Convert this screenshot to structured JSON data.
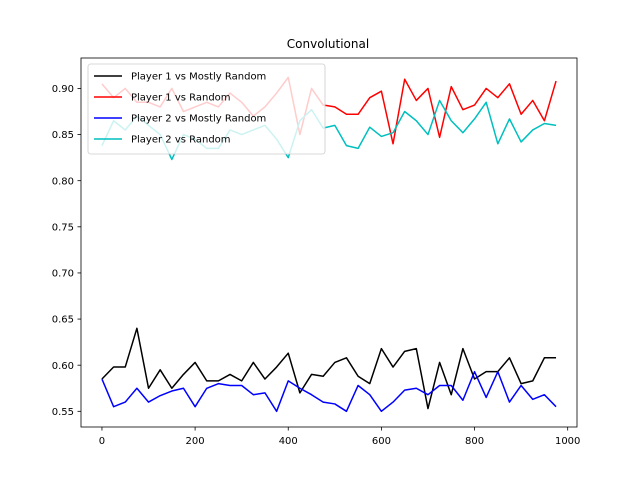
{
  "chart_data": {
    "type": "line",
    "title": "Convolutional",
    "xlabel": "",
    "ylabel": "",
    "xlim": [
      -45,
      1020
    ],
    "ylim": [
      0.533,
      0.933
    ],
    "xticks": [
      0,
      200,
      400,
      600,
      800,
      1000
    ],
    "xtick_labels": [
      "0",
      "200",
      "400",
      "600",
      "800",
      "1000"
    ],
    "yticks": [
      0.55,
      0.6,
      0.65,
      0.7,
      0.75,
      0.8,
      0.85,
      0.9
    ],
    "ytick_labels": [
      "0.55",
      "0.60",
      "0.65",
      "0.70",
      "0.75",
      "0.80",
      "0.85",
      "0.90"
    ],
    "grid": false,
    "legend": "top-left",
    "x": [
      0,
      25,
      50,
      75,
      100,
      125,
      150,
      175,
      200,
      225,
      250,
      275,
      300,
      325,
      350,
      375,
      400,
      425,
      450,
      475,
      500,
      525,
      550,
      575,
      600,
      625,
      650,
      675,
      700,
      725,
      750,
      775,
      800,
      825,
      850,
      875,
      900,
      925,
      950,
      975
    ],
    "series": [
      {
        "name": "Player 1 vs Mostly Random",
        "color": "#000000",
        "values": [
          0.585,
          0.598,
          0.598,
          0.64,
          0.575,
          0.595,
          0.575,
          0.59,
          0.603,
          0.583,
          0.583,
          0.59,
          0.583,
          0.603,
          0.585,
          0.598,
          0.613,
          0.57,
          0.59,
          0.588,
          0.603,
          0.608,
          0.588,
          0.58,
          0.618,
          0.598,
          0.615,
          0.618,
          0.553,
          0.603,
          0.568,
          0.618,
          0.585,
          0.593,
          0.593,
          0.608,
          0.58,
          0.583,
          0.608,
          0.608
        ]
      },
      {
        "name": "Player 1 vs Random",
        "color": "#ff0000",
        "values": [
          0.905,
          0.89,
          0.9,
          0.885,
          0.885,
          0.88,
          0.9,
          0.875,
          0.88,
          0.885,
          0.88,
          0.895,
          0.885,
          0.87,
          0.88,
          0.895,
          0.912,
          0.85,
          0.9,
          0.882,
          0.88,
          0.872,
          0.872,
          0.89,
          0.897,
          0.84,
          0.91,
          0.887,
          0.9,
          0.847,
          0.902,
          0.877,
          0.882,
          0.9,
          0.89,
          0.905,
          0.872,
          0.887,
          0.865,
          0.908
        ]
      },
      {
        "name": "Player 2 vs Mostly Random",
        "color": "#0000ff",
        "values": [
          0.585,
          0.555,
          0.56,
          0.575,
          0.56,
          0.567,
          0.572,
          0.575,
          0.555,
          0.575,
          0.58,
          0.578,
          0.578,
          0.568,
          0.57,
          0.55,
          0.583,
          0.575,
          0.568,
          0.56,
          0.558,
          0.55,
          0.578,
          0.568,
          0.55,
          0.56,
          0.573,
          0.575,
          0.568,
          0.578,
          0.578,
          0.562,
          0.593,
          0.565,
          0.593,
          0.56,
          0.578,
          0.563,
          0.568,
          0.555
        ]
      },
      {
        "name": "Player 2 vs Random",
        "color": "#00bfbf",
        "values": [
          0.838,
          0.865,
          0.855,
          0.87,
          0.86,
          0.85,
          0.823,
          0.85,
          0.845,
          0.835,
          0.835,
          0.855,
          0.85,
          0.855,
          0.86,
          0.845,
          0.825,
          0.865,
          0.877,
          0.857,
          0.86,
          0.838,
          0.835,
          0.858,
          0.848,
          0.852,
          0.875,
          0.865,
          0.85,
          0.887,
          0.865,
          0.852,
          0.867,
          0.885,
          0.84,
          0.867,
          0.842,
          0.855,
          0.862,
          0.86
        ]
      }
    ]
  }
}
